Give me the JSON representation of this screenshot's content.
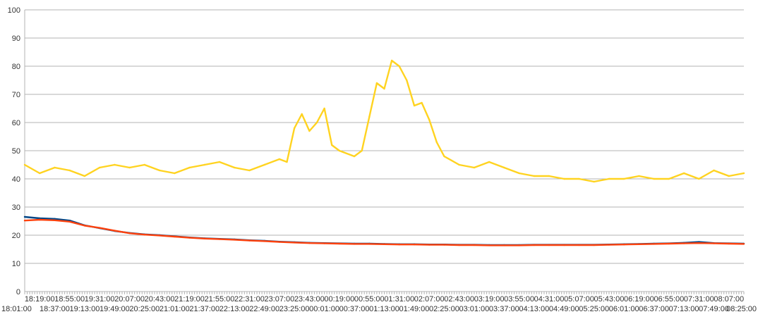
{
  "chart_data": {
    "type": "line",
    "title": "",
    "xlabel": "",
    "ylabel": "",
    "ylim": [
      0,
      100
    ],
    "yticks": [
      0,
      10,
      20,
      30,
      40,
      50,
      60,
      70,
      80,
      90,
      100
    ],
    "grid": true,
    "legend": "none",
    "x_tick_labels_row1": [
      "18:19:00",
      "18:55:00",
      "19:31:00",
      "20:07:00",
      "20:43:00",
      "21:19:00",
      "21:55:00",
      "22:31:00",
      "23:07:00",
      "23:43:00",
      "00:19:00",
      "00:55:00",
      "01:31:00",
      "02:07:00",
      "02:43:00",
      "03:19:00",
      "03:55:00",
      "04:31:00",
      "05:07:00",
      "05:43:00",
      "06:19:00",
      "06:55:00",
      "07:31:00",
      "08:07:00"
    ],
    "x_tick_labels_row2": [
      "18:01:00",
      "18:37:00",
      "19:13:00",
      "19:49:00",
      "20:25:00",
      "21:01:00",
      "21:37:00",
      "22:13:00",
      "22:49:00",
      "23:25:00",
      "00:01:00",
      "00:37:00",
      "01:13:00",
      "01:49:00",
      "02:25:00",
      "03:01:00",
      "03:37:00",
      "04:13:00",
      "04:49:00",
      "05:25:00",
      "06:01:00",
      "06:37:00",
      "07:13:00",
      "07:49:00",
      "08:25:00"
    ],
    "x_start": "18:01:00",
    "x_end": "08:25:00",
    "series": [
      {
        "color": "#FFD320",
        "x": [
          "18:01:00",
          "18:19:00",
          "18:37:00",
          "18:55:00",
          "19:13:00",
          "19:31:00",
          "19:49:00",
          "20:07:00",
          "20:25:00",
          "20:43:00",
          "21:01:00",
          "21:19:00",
          "21:37:00",
          "21:55:00",
          "22:13:00",
          "22:31:00",
          "22:49:00",
          "23:07:00",
          "23:16:00",
          "23:25:00",
          "23:34:00",
          "23:43:00",
          "23:52:00",
          "00:01:00",
          "00:10:00",
          "00:19:00",
          "00:37:00",
          "00:46:00",
          "00:55:00",
          "01:04:00",
          "01:13:00",
          "01:22:00",
          "01:31:00",
          "01:40:00",
          "01:49:00",
          "01:58:00",
          "02:07:00",
          "02:16:00",
          "02:25:00",
          "02:43:00",
          "03:01:00",
          "03:19:00",
          "03:37:00",
          "03:55:00",
          "04:13:00",
          "04:31:00",
          "04:49:00",
          "05:07:00",
          "05:25:00",
          "05:43:00",
          "06:01:00",
          "06:19:00",
          "06:37:00",
          "06:55:00",
          "07:13:00",
          "07:31:00",
          "07:49:00",
          "08:07:00",
          "08:25:00"
        ],
        "values": [
          45,
          42,
          44,
          43,
          41,
          44,
          45,
          44,
          45,
          43,
          42,
          44,
          45,
          46,
          44,
          43,
          45,
          47,
          46,
          58,
          63,
          57,
          60,
          65,
          52,
          50,
          48,
          50,
          62,
          74,
          72,
          82,
          80,
          75,
          66,
          67,
          61,
          53,
          48,
          45,
          44,
          46,
          44,
          42,
          41,
          41,
          40,
          40,
          39,
          40,
          40,
          41,
          40,
          40,
          42,
          40,
          43,
          41,
          42
        ]
      },
      {
        "color": "#004586",
        "x": [
          "18:01:00",
          "18:19:00",
          "18:37:00",
          "18:55:00",
          "19:13:00",
          "19:31:00",
          "19:49:00",
          "20:07:00",
          "20:25:00",
          "20:43:00",
          "21:01:00",
          "21:19:00",
          "21:37:00",
          "21:55:00",
          "22:13:00",
          "22:31:00",
          "22:49:00",
          "23:07:00",
          "23:25:00",
          "23:43:00",
          "00:01:00",
          "00:19:00",
          "00:37:00",
          "00:55:00",
          "01:13:00",
          "01:31:00",
          "01:49:00",
          "02:07:00",
          "02:25:00",
          "02:43:00",
          "03:01:00",
          "03:19:00",
          "03:37:00",
          "03:55:00",
          "04:13:00",
          "04:31:00",
          "04:49:00",
          "05:07:00",
          "05:25:00",
          "05:43:00",
          "06:01:00",
          "06:19:00",
          "06:37:00",
          "06:55:00",
          "07:13:00",
          "07:31:00",
          "07:49:00",
          "08:07:00",
          "08:25:00"
        ],
        "values": [
          26.5,
          26,
          25.8,
          25.2,
          23.5,
          22.5,
          21.5,
          20.8,
          20.3,
          20,
          19.6,
          19.2,
          18.9,
          18.7,
          18.5,
          18.2,
          18,
          17.7,
          17.5,
          17.3,
          17.2,
          17.1,
          17.0,
          17.0,
          16.9,
          16.8,
          16.8,
          16.7,
          16.7,
          16.6,
          16.6,
          16.5,
          16.5,
          16.5,
          16.6,
          16.6,
          16.6,
          16.6,
          16.6,
          16.7,
          16.8,
          16.9,
          17.0,
          17.1,
          17.3,
          17.6,
          17.2,
          17.1,
          17.0
        ]
      },
      {
        "color": "#FF420E",
        "x": [
          "18:01:00",
          "18:19:00",
          "18:37:00",
          "18:55:00",
          "19:13:00",
          "19:31:00",
          "19:49:00",
          "20:07:00",
          "20:25:00",
          "20:43:00",
          "21:01:00",
          "21:19:00",
          "21:37:00",
          "21:55:00",
          "22:13:00",
          "22:31:00",
          "22:49:00",
          "23:07:00",
          "23:25:00",
          "23:43:00",
          "00:01:00",
          "00:19:00",
          "00:37:00",
          "00:55:00",
          "01:13:00",
          "01:31:00",
          "01:49:00",
          "02:07:00",
          "02:25:00",
          "02:43:00",
          "03:01:00",
          "03:19:00",
          "03:37:00",
          "03:55:00",
          "04:13:00",
          "04:31:00",
          "04:49:00",
          "05:07:00",
          "05:25:00",
          "05:43:00",
          "06:01:00",
          "06:19:00",
          "06:37:00",
          "06:55:00",
          "07:13:00",
          "07:31:00",
          "07:49:00",
          "08:07:00",
          "08:25:00"
        ],
        "values": [
          25.2,
          25.5,
          25.3,
          24.8,
          23.4,
          22.6,
          21.6,
          20.7,
          20.2,
          19.9,
          19.5,
          19.1,
          18.8,
          18.6,
          18.4,
          18.1,
          17.9,
          17.6,
          17.4,
          17.2,
          17.1,
          17.0,
          16.9,
          16.9,
          16.8,
          16.7,
          16.7,
          16.6,
          16.6,
          16.5,
          16.5,
          16.4,
          16.4,
          16.4,
          16.5,
          16.5,
          16.5,
          16.5,
          16.5,
          16.6,
          16.7,
          16.8,
          16.9,
          17.0,
          17.1,
          17.2,
          17.1,
          17.0,
          16.9
        ]
      }
    ]
  }
}
